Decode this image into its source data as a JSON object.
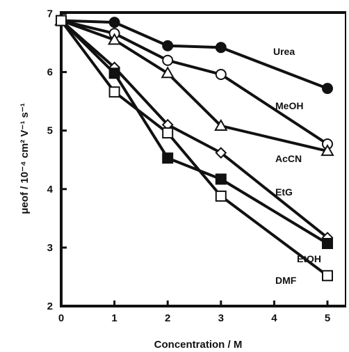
{
  "chart_data": {
    "type": "line",
    "xlabel": "Concentration / M",
    "ylabel": "μeof / 10⁻⁴ cm² V⁻¹ s⁻¹",
    "xlim": [
      0,
      5
    ],
    "ylim": [
      2,
      7
    ],
    "x_ticks": [
      0,
      1,
      2,
      3,
      4,
      5
    ],
    "y_ticks": [
      2,
      3,
      4,
      5,
      6,
      7
    ],
    "grid": false,
    "series": [
      {
        "name": "Urea",
        "marker": "circle-filled",
        "x": [
          0,
          1,
          2,
          3,
          5
        ],
        "y": [
          6.88,
          6.85,
          6.45,
          6.42,
          5.72
        ]
      },
      {
        "name": "MeOH",
        "marker": "circle-open",
        "x": [
          0,
          1,
          2,
          3,
          5
        ],
        "y": [
          6.88,
          6.66,
          6.2,
          5.96,
          4.77
        ]
      },
      {
        "name": "AcCN",
        "marker": "triangle-open",
        "x": [
          0,
          1,
          2,
          3,
          5
        ],
        "y": [
          6.88,
          6.55,
          5.98,
          5.08,
          4.65
        ]
      },
      {
        "name": "EtG",
        "marker": "diamond-open",
        "x": [
          0,
          1,
          2,
          3,
          5
        ],
        "y": [
          6.88,
          6.08,
          5.1,
          4.62,
          3.17
        ]
      },
      {
        "name": "EtOH",
        "marker": "square-filled",
        "x": [
          0,
          1,
          2,
          3,
          5
        ],
        "y": [
          6.88,
          5.98,
          4.53,
          4.17,
          3.07
        ]
      },
      {
        "name": "DMF",
        "marker": "square-open",
        "x": [
          0,
          1,
          2,
          3,
          5
        ],
        "y": [
          6.88,
          5.66,
          4.96,
          3.88,
          2.52
        ]
      }
    ]
  }
}
